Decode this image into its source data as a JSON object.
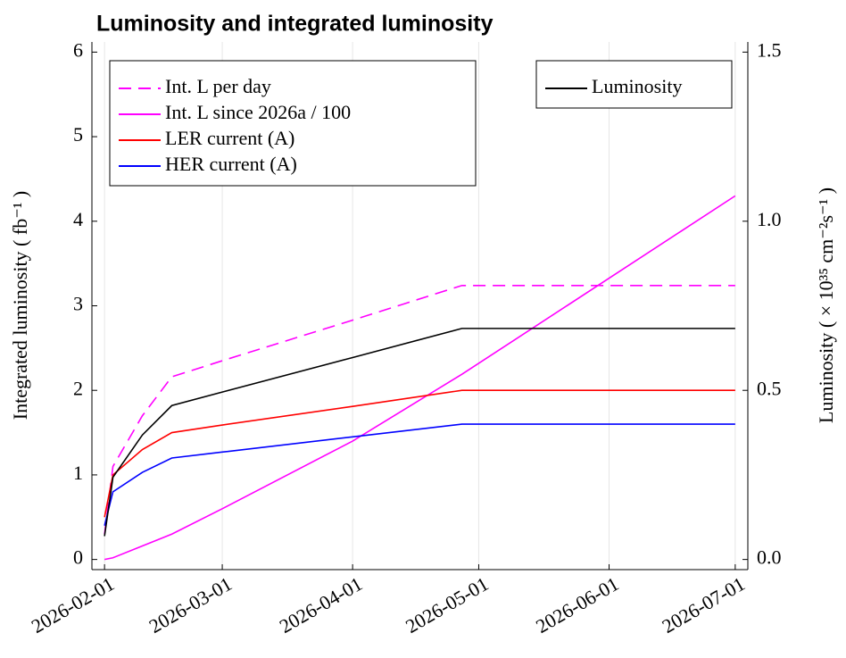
{
  "chart_data": {
    "type": "line",
    "title": "Luminosity and integrated luminosity",
    "y_label": "Integrated luminosity ( fb⁻¹ )",
    "y2_label": "Luminosity ( × 10³⁵ cm⁻²s⁻¹ )",
    "x": [
      "2026-02-01",
      "2026-02-03",
      "2026-02-10",
      "2026-02-17",
      "2026-03-01",
      "2026-04-01",
      "2026-04-27",
      "2026-07-01"
    ],
    "xlim": [
      "2026-01-29",
      "2026-07-04"
    ],
    "xticks": [
      "2026-02-01",
      "2026-03-01",
      "2026-04-01",
      "2026-05-01",
      "2026-06-01",
      "2026-07-01"
    ],
    "ylim": [
      -0.12,
      6.12
    ],
    "yticks": [
      0,
      1,
      2,
      3,
      4,
      5,
      6
    ],
    "y2lim": [
      -0.03,
      1.53
    ],
    "y2ticks": [
      {
        "value": 0,
        "label": "0.0"
      },
      {
        "value": 0.5,
        "label": "0.5"
      },
      {
        "value": 1,
        "label": "1.0"
      },
      {
        "value": 1.5,
        "label": "1.5"
      }
    ],
    "grid": "x",
    "legend": "upper left",
    "legend2": "upper right",
    "series": [
      {
        "name": "Int. L per day",
        "color": "#ff00ff",
        "dash": true,
        "values": [
          0.3,
          1.1,
          1.7,
          2.16,
          2.35,
          2.83,
          3.24,
          3.24
        ]
      },
      {
        "name": "Int. L since 2026a / 100",
        "color": "#ff00ff",
        "values": [
          0,
          0.02,
          0.16,
          0.3,
          0.6,
          1.4,
          2.19,
          4.3
        ]
      },
      {
        "name": "LER current (A)",
        "color": "#ff0000",
        "values": [
          0.5,
          1.0,
          1.3,
          1.5,
          1.59,
          1.81,
          2.0,
          2.0
        ]
      },
      {
        "name": "HER current (A)",
        "color": "#0000ff",
        "values": [
          0.4,
          0.8,
          1.03,
          1.2,
          1.27,
          1.45,
          1.6,
          1.6
        ]
      },
      {
        "name": "Luminosity",
        "color": "#000000",
        "axis": "y2",
        "values": [
          0.069,
          0.243,
          0.368,
          0.455,
          0.495,
          0.597,
          0.683,
          0.683
        ]
      }
    ]
  }
}
